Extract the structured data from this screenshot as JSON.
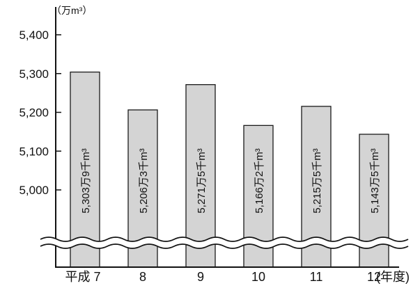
{
  "chart_data": {
    "type": "bar",
    "categories": [
      "平成 7",
      "8",
      "9",
      "10",
      "11",
      "12"
    ],
    "values": [
      5303.9,
      5206.3,
      5271.5,
      5166.2,
      5215.5,
      5143.5
    ],
    "data_labels": [
      "5,303万9千m³",
      "5,206万3千m³",
      "5,271万5千m³",
      "5,166万2千m³",
      "5,215万5千m³",
      "5,143万5千m³"
    ],
    "yticks": [
      "5,000",
      "5,100",
      "5,200",
      "5,300",
      "5,400"
    ],
    "ytick_values": [
      5000,
      5100,
      5200,
      5300,
      5400
    ],
    "ylim": [
      5000,
      5400
    ],
    "y_unit": "（万m³）",
    "x_unit": "(年度)",
    "axis_break": true,
    "grid": false,
    "colors": {
      "bar_fill": "#d4d4d4",
      "bar_stroke": "#1a1a1a",
      "axis": "#111111"
    }
  }
}
